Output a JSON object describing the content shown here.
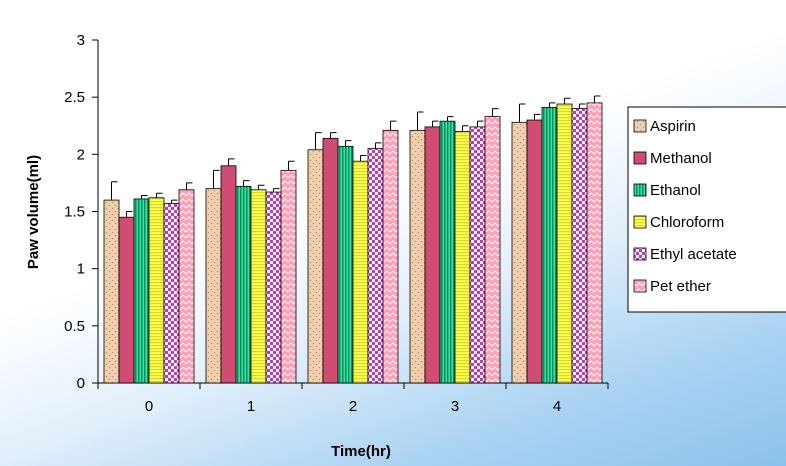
{
  "chart_data": {
    "type": "bar",
    "xlabel": "Time(hr)",
    "ylabel": "Paw volume(ml)",
    "categories": [
      "0",
      "1",
      "2",
      "3",
      "4"
    ],
    "ylim": [
      0,
      3
    ],
    "yticks": [
      "0",
      "0.5",
      "1",
      "1.5",
      "2",
      "2.5",
      "3"
    ],
    "grid": false,
    "legend_position": "right",
    "error_bars": true,
    "series": [
      {
        "name": "Aspirin",
        "values": [
          1.6,
          1.7,
          2.04,
          2.21,
          2.28
        ],
        "errors": [
          0.16,
          0.16,
          0.15,
          0.16,
          0.16
        ],
        "color": "#f2cfad",
        "pattern": "dots"
      },
      {
        "name": "Methanol",
        "values": [
          1.45,
          1.9,
          2.14,
          2.24,
          2.3
        ],
        "errors": [
          0.05,
          0.06,
          0.05,
          0.05,
          0.05
        ],
        "color": "#d04c72",
        "pattern": "solid"
      },
      {
        "name": "Ethanol",
        "values": [
          1.61,
          1.72,
          2.07,
          2.29,
          2.41
        ],
        "errors": [
          0.03,
          0.05,
          0.05,
          0.04,
          0.04
        ],
        "color": "#33e6a4",
        "pattern": "vlines"
      },
      {
        "name": "Chloroform",
        "values": [
          1.62,
          1.69,
          1.94,
          2.2,
          2.44
        ],
        "errors": [
          0.04,
          0.04,
          0.05,
          0.05,
          0.05
        ],
        "color": "#ffff4a",
        "pattern": "hlines"
      },
      {
        "name": "Ethyl acetate",
        "values": [
          1.57,
          1.67,
          2.05,
          2.24,
          2.4
        ],
        "errors": [
          0.03,
          0.03,
          0.05,
          0.05,
          0.04
        ],
        "color": "#c236c2",
        "pattern": "checker"
      },
      {
        "name": "Pet ether",
        "values": [
          1.69,
          1.86,
          2.21,
          2.33,
          2.45
        ],
        "errors": [
          0.06,
          0.08,
          0.08,
          0.07,
          0.06
        ],
        "color": "#ff9fb8",
        "pattern": "zigzag"
      }
    ]
  }
}
